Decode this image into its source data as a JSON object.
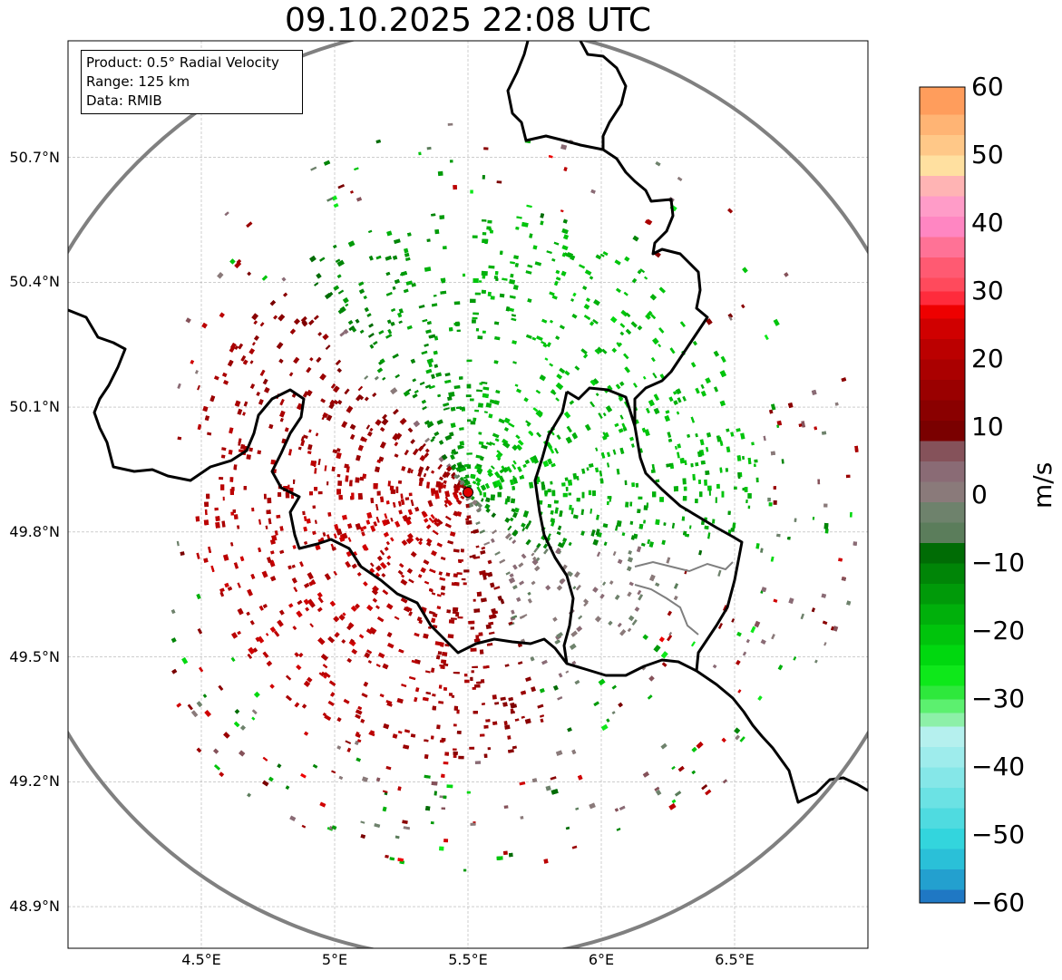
{
  "title": "09.10.2025 22:08 UTC",
  "info": {
    "product": "Product: 0.5° Radial Velocity",
    "range": "Range: 125 km",
    "data": "Data: RMIB"
  },
  "map": {
    "lon_range": [
      4.0,
      7.0
    ],
    "lat_range": [
      48.8,
      50.98
    ],
    "radar_site": {
      "lon": 5.5,
      "lat": 49.91,
      "color": "#e00000"
    },
    "range_ring_color": "#808080",
    "border_color": "#000000",
    "lat_ticks": [
      {
        "value": 50.7,
        "label": "50.7°N"
      },
      {
        "value": 50.4,
        "label": "50.4°N"
      },
      {
        "value": 50.1,
        "label": "50.1°N"
      },
      {
        "value": 49.8,
        "label": "49.8°N"
      },
      {
        "value": 49.5,
        "label": "49.5°N"
      },
      {
        "value": 49.2,
        "label": "49.2°N"
      },
      {
        "value": 48.9,
        "label": "48.9°N"
      }
    ],
    "lon_ticks": [
      {
        "value": 4.5,
        "label": "4.5°E"
      },
      {
        "value": 5.0,
        "label": "5°E"
      },
      {
        "value": 5.5,
        "label": "5.5°E"
      },
      {
        "value": 6.0,
        "label": "6°E"
      },
      {
        "value": 6.5,
        "label": "6.5°E"
      }
    ]
  },
  "colorbar": {
    "unit": "m/s",
    "min": -60,
    "max": 60,
    "ticks": [
      {
        "value": 60,
        "label": "60"
      },
      {
        "value": 50,
        "label": "50"
      },
      {
        "value": 40,
        "label": "40"
      },
      {
        "value": 30,
        "label": "30"
      },
      {
        "value": 20,
        "label": "20"
      },
      {
        "value": 10,
        "label": "10"
      },
      {
        "value": 0,
        "label": "0"
      },
      {
        "value": -10,
        "label": "−10"
      },
      {
        "value": -20,
        "label": "−20"
      },
      {
        "value": -30,
        "label": "−30"
      },
      {
        "value": -40,
        "label": "−40"
      },
      {
        "value": -50,
        "label": "−50"
      },
      {
        "value": -60,
        "label": "−60"
      }
    ],
    "stops": [
      {
        "from": -60,
        "to": -58,
        "color": "#1f78c4"
      },
      {
        "from": -58,
        "to": -55,
        "color": "#23a0cf"
      },
      {
        "from": -55,
        "to": -52,
        "color": "#2ac0d8"
      },
      {
        "from": -52,
        "to": -49,
        "color": "#33d5dd"
      },
      {
        "from": -49,
        "to": -46,
        "color": "#4fdbe0"
      },
      {
        "from": -46,
        "to": -43,
        "color": "#6be2e4"
      },
      {
        "from": -43,
        "to": -40,
        "color": "#85e7e8"
      },
      {
        "from": -40,
        "to": -37,
        "color": "#9eecec"
      },
      {
        "from": -37,
        "to": -34,
        "color": "#b5f0ee"
      },
      {
        "from": -34,
        "to": -32,
        "color": "#8df0a8"
      },
      {
        "from": -32,
        "to": -30,
        "color": "#5cf06f"
      },
      {
        "from": -30,
        "to": -28,
        "color": "#2ee83c"
      },
      {
        "from": -28,
        "to": -25,
        "color": "#0ee81a"
      },
      {
        "from": -25,
        "to": -22,
        "color": "#00d80f"
      },
      {
        "from": -22,
        "to": -19,
        "color": "#00c40c"
      },
      {
        "from": -19,
        "to": -16,
        "color": "#00b00b"
      },
      {
        "from": -16,
        "to": -13,
        "color": "#009a09"
      },
      {
        "from": -13,
        "to": -10,
        "color": "#008507"
      },
      {
        "from": -10,
        "to": -7,
        "color": "#006c05"
      },
      {
        "from": -7,
        "to": -4,
        "color": "#5b7d5b"
      },
      {
        "from": -4,
        "to": -1,
        "color": "#6e826c"
      },
      {
        "from": -1,
        "to": 2,
        "color": "#8a7a7a"
      },
      {
        "from": 2,
        "to": 5,
        "color": "#8a6b75"
      },
      {
        "from": 5,
        "to": 8,
        "color": "#85525a"
      },
      {
        "from": 8,
        "to": 11,
        "color": "#7a0000"
      },
      {
        "from": 11,
        "to": 14,
        "color": "#8a0000"
      },
      {
        "from": 14,
        "to": 17,
        "color": "#9a0000"
      },
      {
        "from": 17,
        "to": 20,
        "color": "#aa0000"
      },
      {
        "from": 20,
        "to": 23,
        "color": "#bb0000"
      },
      {
        "from": 23,
        "to": 26,
        "color": "#d00000"
      },
      {
        "from": 26,
        "to": 28,
        "color": "#ee0000"
      },
      {
        "from": 28,
        "to": 30,
        "color": "#ff2b3c"
      },
      {
        "from": 30,
        "to": 32,
        "color": "#ff4a5c"
      },
      {
        "from": 32,
        "to": 35,
        "color": "#ff5a72"
      },
      {
        "from": 35,
        "to": 38,
        "color": "#ff7296"
      },
      {
        "from": 38,
        "to": 41,
        "color": "#ff86c2"
      },
      {
        "from": 41,
        "to": 44,
        "color": "#ff9cc8"
      },
      {
        "from": 44,
        "to": 47,
        "color": "#ffb4b4"
      },
      {
        "from": 47,
        "to": 50,
        "color": "#ffe0a0"
      },
      {
        "from": 50,
        "to": 53,
        "color": "#ffc888"
      },
      {
        "from": 53,
        "to": 56,
        "color": "#ffb474"
      },
      {
        "from": 56,
        "to": 60,
        "color": "#ff9d5c"
      }
    ]
  }
}
